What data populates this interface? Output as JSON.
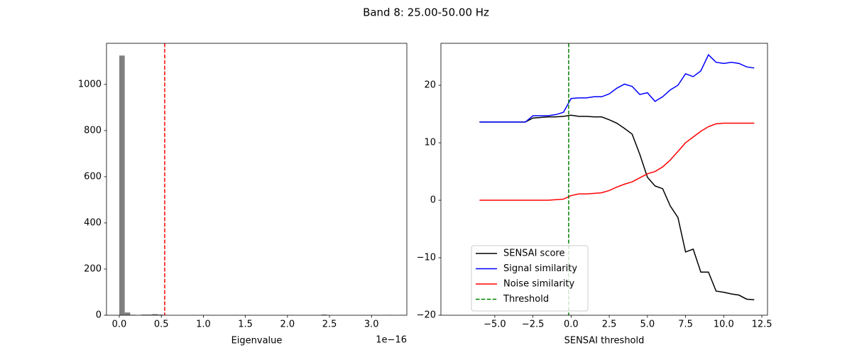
{
  "title": "Band 8: 25.00-50.00 Hz",
  "chart_data": [
    {
      "type": "histogram",
      "xlabel": "Eigenvalue",
      "x_offset_label": "1e−16",
      "color": "#808080",
      "bins": [
        0,
        0.065,
        0.13,
        0.195,
        0.26,
        0.325,
        0.39,
        0.455,
        0.52,
        0.585,
        0.65,
        0.715,
        0.78,
        0.845,
        0.91,
        0.975,
        1.04,
        1.105,
        1.17,
        1.235,
        1.3,
        1.365,
        1.43,
        1.495,
        1.56,
        1.625,
        1.69,
        1.755,
        1.82,
        1.885,
        1.95,
        2.015,
        2.08,
        2.145,
        2.21,
        2.275,
        2.34,
        2.405,
        2.47,
        2.535,
        2.6,
        2.665,
        2.73,
        2.795,
        2.86,
        2.925,
        2.99,
        3.055,
        3.12,
        3.185,
        3.25
      ],
      "values": [
        1125,
        12,
        2,
        0,
        3,
        3,
        5,
        3,
        0,
        0,
        0,
        0,
        0,
        0,
        0,
        0,
        0,
        0,
        0,
        0,
        0,
        0,
        0,
        0,
        0,
        0,
        0,
        0,
        0,
        0,
        0,
        0,
        0,
        0,
        0,
        0,
        0,
        3,
        0,
        0,
        0,
        0,
        0,
        0,
        0,
        0,
        0,
        0,
        0,
        1
      ],
      "vline": {
        "value": 0.54,
        "color": "#ff0000"
      },
      "xlim": [
        -0.152,
        3.42
      ],
      "ylim": [
        0,
        1178
      ],
      "xticks": [
        {
          "value": 0,
          "label": "0.0"
        },
        {
          "value": 0.5,
          "label": "0.5"
        },
        {
          "value": 1,
          "label": "1.0"
        },
        {
          "value": 1.5,
          "label": "1.5"
        },
        {
          "value": 2,
          "label": "2.0"
        },
        {
          "value": 2.5,
          "label": "2.5"
        },
        {
          "value": 3,
          "label": "3.0"
        }
      ],
      "yticks": [
        0,
        200,
        400,
        600,
        800,
        1000
      ]
    },
    {
      "type": "line",
      "xlabel": "SENSAI threshold",
      "legend": "lower left",
      "x": [
        -6,
        -5.5,
        -5,
        -4.5,
        -4,
        -3.5,
        -3,
        -2.5,
        -2,
        -1.5,
        -1,
        -0.5,
        0,
        0.5,
        1,
        1.5,
        2,
        2.5,
        3,
        3.5,
        4,
        4.5,
        5,
        5.5,
        6,
        6.5,
        7,
        7.5,
        8,
        8.5,
        9,
        9.5,
        10,
        10.5,
        11,
        11.5,
        12
      ],
      "series": [
        {
          "name": "SENSAI score",
          "color": "#000000",
          "values": [
            13.6,
            13.6,
            13.6,
            13.6,
            13.6,
            13.6,
            13.6,
            14.3,
            14.4,
            14.5,
            14.5,
            14.6,
            14.8,
            14.6,
            14.6,
            14.5,
            14.5,
            14,
            13.4,
            12.5,
            11.5,
            8,
            4,
            2.5,
            2,
            -1,
            -3,
            -9,
            -8.5,
            -12.5,
            -12.5,
            -15.8,
            -16,
            -16.3,
            -16.5,
            -17.2,
            -17.3
          ]
        },
        {
          "name": "Signal similarity",
          "color": "#0000ff",
          "values": [
            13.6,
            13.6,
            13.6,
            13.6,
            13.6,
            13.6,
            13.6,
            14.7,
            14.7,
            14.7,
            14.9,
            15.3,
            17.7,
            17.8,
            17.8,
            18,
            18,
            18.5,
            19.5,
            20.2,
            19.8,
            18.4,
            18.7,
            17.2,
            18,
            19.2,
            20,
            22,
            21.5,
            22.5,
            25.3,
            24,
            23.8,
            24,
            23.8,
            23.2,
            23
          ]
        },
        {
          "name": "Noise similarity",
          "color": "#ff0000",
          "values": [
            0,
            0,
            0,
            0,
            0,
            0,
            0,
            0,
            0,
            0,
            0.1,
            0.2,
            0.8,
            1.1,
            1.1,
            1.2,
            1.3,
            1.7,
            2.3,
            2.8,
            3.2,
            3.9,
            4.6,
            5,
            5.8,
            7,
            8.5,
            10,
            11,
            12,
            12.8,
            13.3,
            13.4,
            13.4,
            13.4,
            13.4,
            13.4
          ]
        }
      ],
      "vline": {
        "name": "Threshold",
        "value": -0.16,
        "color": "#008000"
      },
      "xlim": [
        -8.53,
        12.87
      ],
      "ylim": [
        -20,
        27.3
      ],
      "xticks": [
        {
          "value": -5,
          "label": "−5.0"
        },
        {
          "value": -2.5,
          "label": "−2.5"
        },
        {
          "value": 0,
          "label": "0.0"
        },
        {
          "value": 2.5,
          "label": "2.5"
        },
        {
          "value": 5,
          "label": "5.0"
        },
        {
          "value": 7.5,
          "label": "7.5"
        },
        {
          "value": 10,
          "label": "10.0"
        },
        {
          "value": 12.5,
          "label": "12.5"
        }
      ],
      "yticks": [
        {
          "value": -20,
          "label": "−20"
        },
        {
          "value": -10,
          "label": "−10"
        },
        0,
        10,
        20
      ]
    }
  ]
}
